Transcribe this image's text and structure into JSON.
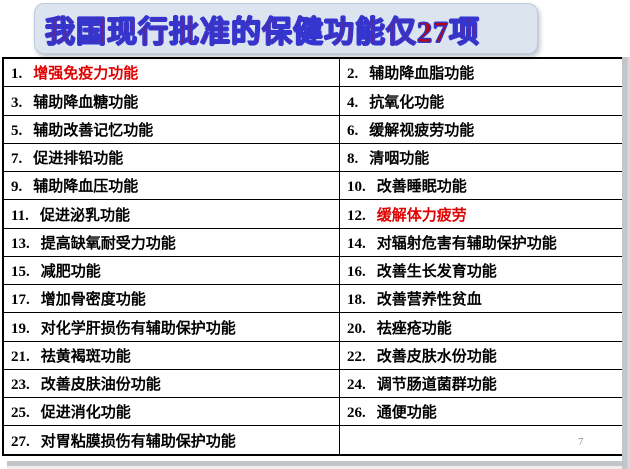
{
  "slide": {
    "title": "我国现行批准的保健功能仅27项",
    "page_number": "7",
    "colors": {
      "title_text_fill": "#c00000",
      "title_text_outline": "#3535cf",
      "title_box_background": "#dce4f0",
      "table_border": "#000000",
      "highlight_red": "#e00000",
      "body_text": "#000000",
      "canvas_shadow_gray": "#c2c6c9"
    },
    "table": {
      "rows": [
        [
          {
            "num": "1.",
            "text": "增强免疫力功能",
            "red": true
          },
          {
            "num": "2.",
            "text": "辅助降血脂功能",
            "red": false
          }
        ],
        [
          {
            "num": "3.",
            "text": "辅助降血糖功能",
            "red": false
          },
          {
            "num": "4.",
            "text": "抗氧化功能",
            "red": false
          }
        ],
        [
          {
            "num": "5.",
            "text": "辅助改善记忆功能",
            "red": false
          },
          {
            "num": "6.",
            "text": "缓解视疲劳功能",
            "red": false
          }
        ],
        [
          {
            "num": "7.",
            "text": "促进排铅功能",
            "red": false
          },
          {
            "num": "8.",
            "text": "清咽功能",
            "red": false
          }
        ],
        [
          {
            "num": "9.",
            "text": "辅助降血压功能",
            "red": false
          },
          {
            "num": "10.",
            "text": "改善睡眠功能",
            "red": false
          }
        ],
        [
          {
            "num": "11.",
            "text": "促进泌乳功能",
            "red": false
          },
          {
            "num": "12.",
            "text": "缓解体力疲劳",
            "red": true
          }
        ],
        [
          {
            "num": "13.",
            "text": "提高缺氧耐受力功能",
            "red": false
          },
          {
            "num": "14.",
            "text": "对辐射危害有辅助保护功能",
            "red": false
          }
        ],
        [
          {
            "num": "15.",
            "text": "减肥功能",
            "red": false
          },
          {
            "num": "16.",
            "text": "改善生长发育功能",
            "red": false
          }
        ],
        [
          {
            "num": "17.",
            "text": "增加骨密度功能",
            "red": false
          },
          {
            "num": "18.",
            "text": "改善营养性贫血",
            "red": false
          }
        ],
        [
          {
            "num": "19.",
            "text": "对化学肝损伤有辅助保护功能",
            "red": false
          },
          {
            "num": "20.",
            "text": "祛痤疮功能",
            "red": false
          }
        ],
        [
          {
            "num": "21.",
            "text": "祛黄褐斑功能",
            "red": false
          },
          {
            "num": "22.",
            "text": "改善皮肤水份功能",
            "red": false
          }
        ],
        [
          {
            "num": "23.",
            "text": "改善皮肤油份功能",
            "red": false
          },
          {
            "num": "24.",
            "text": "调节肠道菌群功能",
            "red": false
          }
        ],
        [
          {
            "num": "25.",
            "text": "促进消化功能",
            "red": false
          },
          {
            "num": "26.",
            "text": "通便功能",
            "red": false
          }
        ],
        [
          {
            "num": "27.",
            "text": "对胃粘膜损伤有辅助保护功能",
            "red": false
          },
          null
        ]
      ]
    }
  }
}
